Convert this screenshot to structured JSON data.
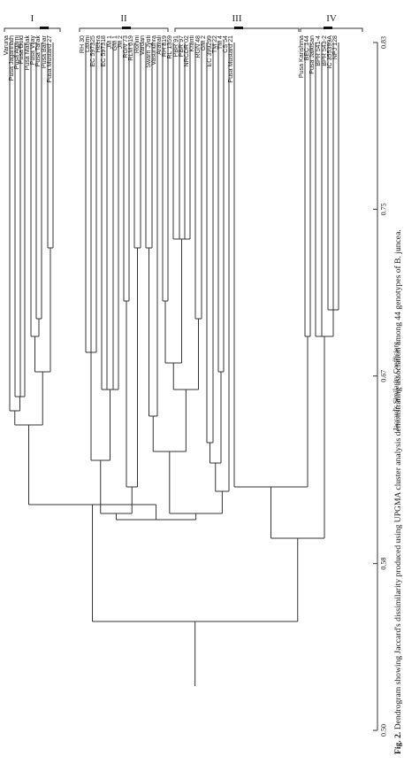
{
  "figure": {
    "caption_label": "Fig. 2.",
    "caption_text": "Dendrogram showing Jaccard's dissimilarity produced using UPGMA cluster analysis demonstrating association among 44 genotypes of B. juncea.",
    "axis_title": "Jaccard's Similarity Coefficient",
    "axis_ticks": [
      {
        "label": "0.50",
        "value": 0.5
      },
      {
        "label": "0.58",
        "value": 0.58
      },
      {
        "label": "0.67",
        "value": 0.67
      },
      {
        "label": "0.75",
        "value": 0.75
      },
      {
        "label": "0.83",
        "value": 0.83
      }
    ],
    "groups": [
      {
        "label": "I"
      },
      {
        "label": "II"
      },
      {
        "label": "III"
      },
      {
        "label": "IV"
      }
    ],
    "genotypes": [
      "Varuna",
      "Pusa Jagannath",
      "Pusa Agarni",
      "Pusa Bold",
      "Pusa Mahak",
      "Pusa Vijay",
      "Pusa Tarak",
      "Pusa Bahar",
      "Pusa Mustard 27",
      "RH 30",
      "Laxmi",
      "EC 597325",
      "Heera",
      "EC 597318",
      "JM 1",
      "GM 1",
      "JM 2",
      "RGN 73",
      "RLM 619",
      "Rohini",
      "Vardan",
      "Swarn Jyoti",
      "Vasundhra",
      "Aravali",
      "RH 819",
      "RL 1359",
      "PBR 91",
      "PBR 97",
      "NRCDR 02",
      "Kranti",
      "RGN 48",
      "GM 2",
      "EC 399299",
      "TM 22",
      "TM 4",
      "CS 54",
      "Pusa Mustard 21",
      "Pusa Karishma",
      "BEC 144",
      "Pusa Jaikisan",
      "BPR 541-4",
      "BPR 543-2",
      "IC 355399A",
      "NPJ 128"
    ]
  }
}
